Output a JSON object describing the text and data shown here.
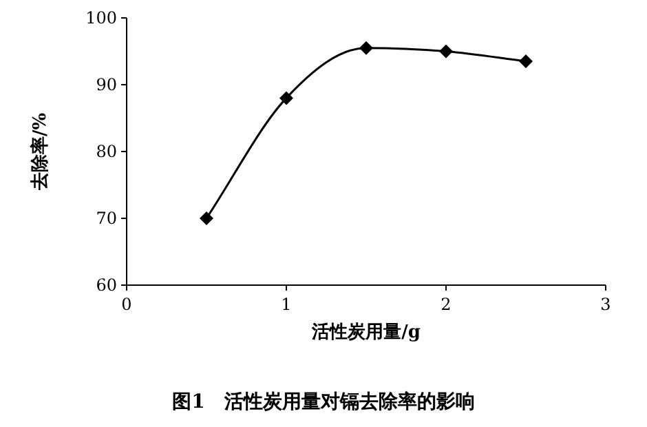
{
  "chart_data": {
    "type": "line",
    "title": "图1　活性炭用量对镉去除率的影响",
    "xlabel": "活性炭用量/g",
    "ylabel": "去除率/%",
    "x": [
      0.5,
      1,
      1.5,
      2,
      2.5
    ],
    "series": [
      {
        "color": "#000000",
        "values": [
          70,
          88,
          95.5,
          95,
          93.5
        ]
      }
    ],
    "xlim": [
      0,
      3
    ],
    "xticks": [
      0,
      1,
      2,
      3
    ],
    "ylim": [
      60,
      100
    ],
    "yticks": [
      60,
      70,
      80,
      90,
      100
    ],
    "marker": "diamond",
    "line_style": "solid",
    "grid": false
  }
}
